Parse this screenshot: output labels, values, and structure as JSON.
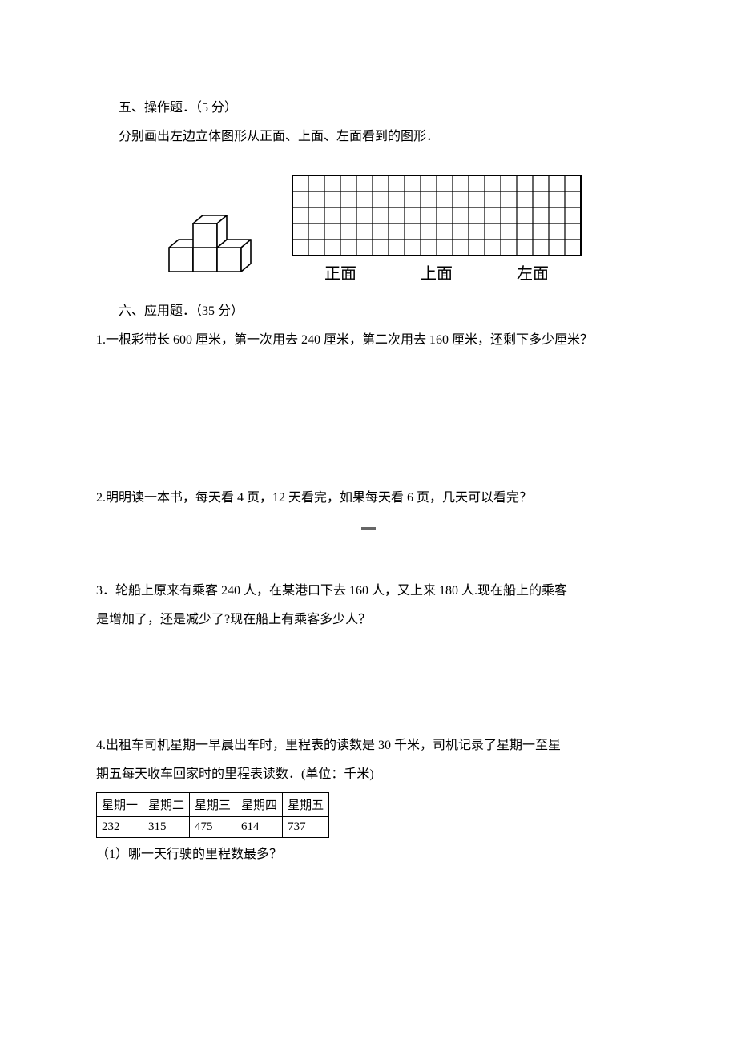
{
  "section5": {
    "heading": "五、操作题．（5 分）",
    "prompt": "分别画出左边立体图形从正面、上面、左面看到的图形．",
    "labels": {
      "front": "正面",
      "top": "上面",
      "left": "左面"
    },
    "figure": {
      "cubes_svg": {
        "stroke": "#000000",
        "fill": "#ffffff",
        "stroke_width": 1.6
      },
      "grid_svg": {
        "cols": 18,
        "rows": 5,
        "cell": 20,
        "stroke": "#000000",
        "stroke_width": 1.2,
        "outer_stroke_width": 2
      }
    }
  },
  "section6": {
    "heading": "六、应用题．（35 分）",
    "q1": "1.一根彩带长 600 厘米，第一次用去 240 厘米，第二次用去 160 厘米，还剩下多少厘米？",
    "q2": "2.明明读一本书，每天看 4 页，12 天看完，如果每天看 6 页，几天可以看完？",
    "q3a": "3．轮船上原来有乘客 240 人，在某港口下去 160 人，又上来 180 人.现在船上的乘客",
    "q3b": "是增加了，还是减少了?现在船上有乘客多少人？",
    "q4a": "4.出租车司机星期一早晨出车时，里程表的读数是 30 千米，司机记录了星期一至星",
    "q4b": "期五每天收车回家时的里程表读数．(单位：千米)",
    "table": {
      "headers": [
        "星期一",
        "星期二",
        "星期三",
        "星期四",
        "星期五"
      ],
      "values": [
        "232",
        "315",
        "475",
        "614",
        "737"
      ]
    },
    "q4_sub1": "（1）哪一天行驶的里程数最多？"
  }
}
